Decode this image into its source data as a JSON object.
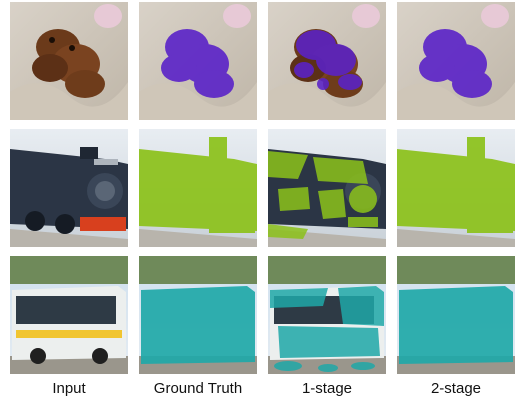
{
  "column_labels": [
    "Input",
    "Ground Truth",
    "1-stage",
    "2-stage"
  ],
  "rows": [
    {
      "subject": "dogs",
      "mask_color": "#5a22c8"
    },
    {
      "subject": "train",
      "mask_color": "#8cc21a"
    },
    {
      "subject": "bus",
      "mask_color": "#1fa8a8"
    }
  ]
}
